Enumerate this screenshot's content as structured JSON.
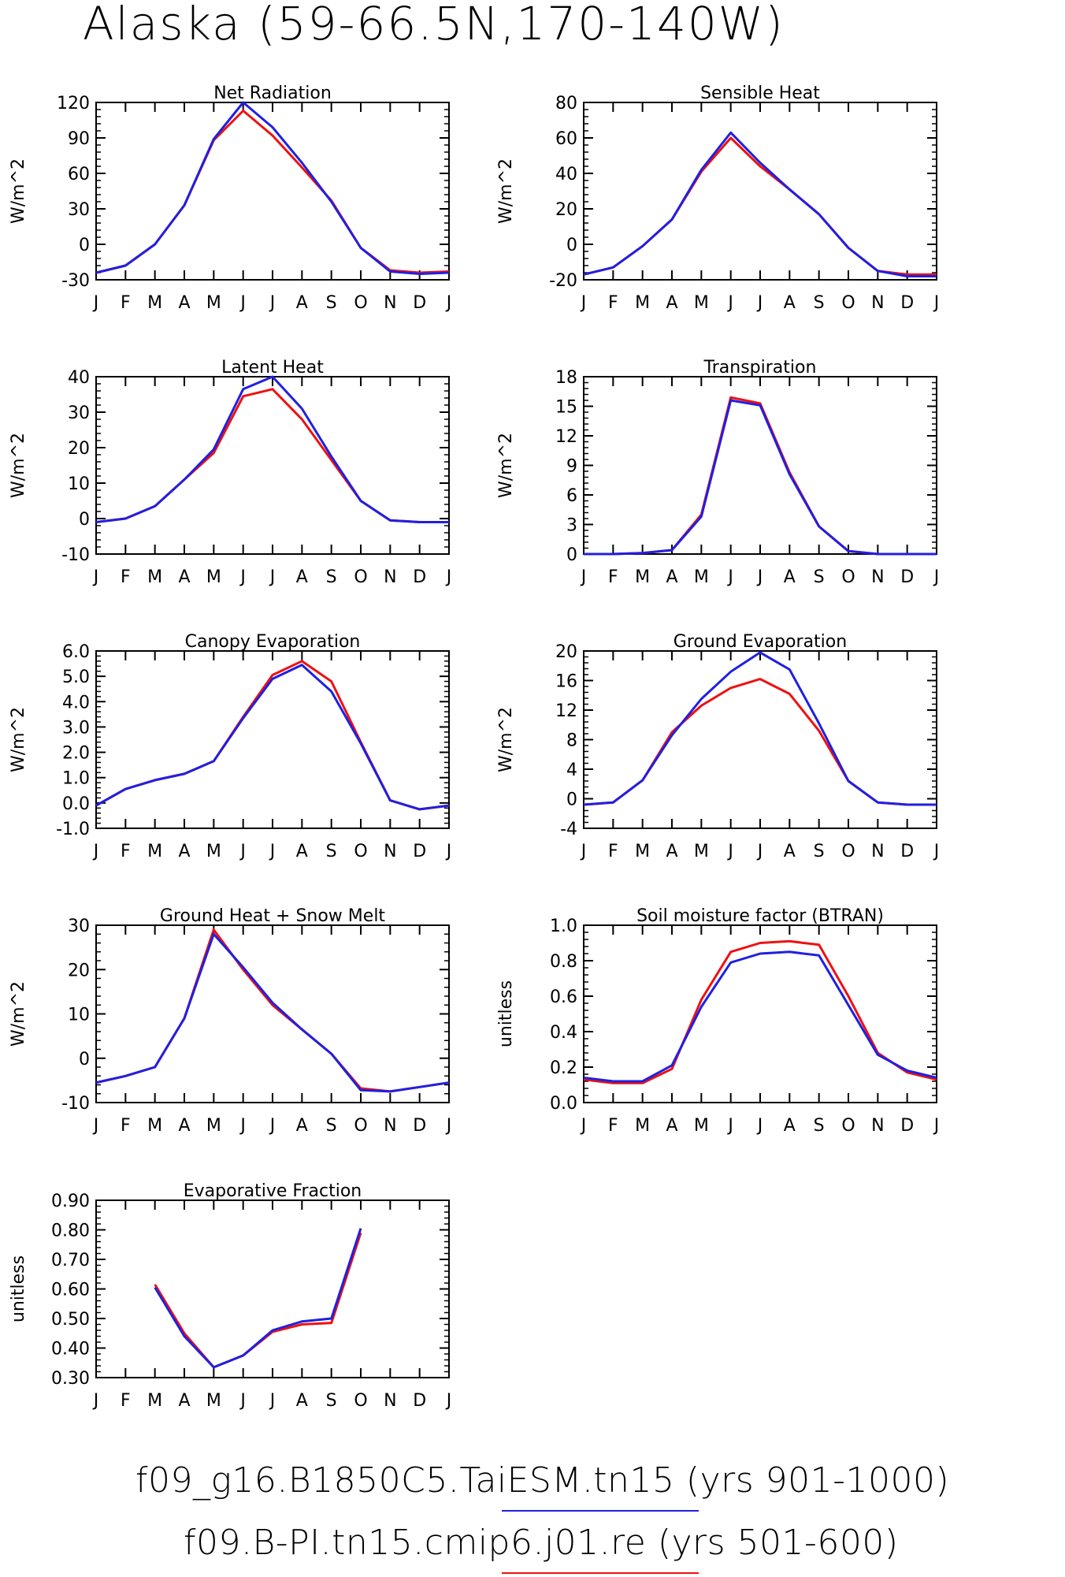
{
  "figure_title": "Alaska (59-66.5N,170-140W)",
  "legend": [
    {
      "label": "f09_g16.B1850C5.TaiESM.tn15 (yrs 901-1000)",
      "color": "#2020e0"
    },
    {
      "label": "f09.B-PI.tn15.cmip6.j01.re (yrs 501-600)",
      "color": "#ee1111"
    }
  ],
  "months": [
    "J",
    "F",
    "M",
    "A",
    "M",
    "J",
    "J",
    "A",
    "S",
    "O",
    "N",
    "D",
    "J"
  ],
  "chart_data": [
    {
      "type": "line",
      "title": "Net Radiation",
      "ylabel": "W/m^2",
      "ylim": [
        -30,
        120
      ],
      "yticks": [
        -30,
        0,
        30,
        60,
        90,
        120
      ],
      "ytick_labels": [
        "-30",
        "0",
        "30",
        "60",
        "90",
        "120"
      ],
      "series": [
        {
          "color": "#ee1111",
          "values": [
            -24,
            -18,
            0,
            33,
            88,
            113,
            92,
            65,
            37,
            -3,
            -22,
            -24,
            -23
          ]
        },
        {
          "color": "#2020e0",
          "values": [
            -24,
            -18,
            0,
            33,
            89,
            120,
            99,
            69,
            36,
            -3,
            -23,
            -25,
            -24
          ]
        }
      ]
    },
    {
      "type": "line",
      "title": "Sensible Heat",
      "ylabel": "W/m^2",
      "ylim": [
        -20,
        80
      ],
      "yticks": [
        -20,
        0,
        20,
        40,
        60,
        80
      ],
      "ytick_labels": [
        "-20",
        "0",
        "20",
        "40",
        "60",
        "80"
      ],
      "series": [
        {
          "color": "#ee1111",
          "values": [
            -17,
            -13,
            -1,
            14,
            41,
            60,
            44,
            31,
            17,
            -2,
            -15,
            -17,
            -17
          ]
        },
        {
          "color": "#2020e0",
          "values": [
            -17,
            -13,
            -1,
            14,
            42,
            63,
            46,
            31,
            17,
            -2,
            -15,
            -18,
            -18
          ]
        }
      ]
    },
    {
      "type": "line",
      "title": "Latent Heat",
      "ylabel": "W/m^2",
      "ylim": [
        -10,
        40
      ],
      "yticks": [
        -10,
        0,
        10,
        20,
        30,
        40
      ],
      "ytick_labels": [
        "-10",
        "0",
        "10",
        "20",
        "30",
        "40"
      ],
      "series": [
        {
          "color": "#ee1111",
          "values": [
            -1,
            0,
            3.5,
            11,
            18.5,
            34.5,
            36.5,
            28,
            16.5,
            5,
            -0.5,
            -1,
            -1
          ]
        },
        {
          "color": "#2020e0",
          "values": [
            -1,
            0,
            3.5,
            11,
            19.5,
            36.5,
            40,
            31,
            17.5,
            5,
            -0.5,
            -1,
            -1
          ]
        }
      ]
    },
    {
      "type": "line",
      "title": "Transpiration",
      "ylabel": "W/m^2",
      "ylim": [
        0,
        18
      ],
      "yticks": [
        0,
        3,
        6,
        9,
        12,
        15,
        18
      ],
      "ytick_labels": [
        "0",
        "3",
        "6",
        "9",
        "12",
        "15",
        "18"
      ],
      "series": [
        {
          "color": "#ee1111",
          "values": [
            0,
            0,
            0.1,
            0.4,
            4.0,
            15.9,
            15.3,
            8.3,
            2.8,
            0.3,
            0,
            0,
            0
          ]
        },
        {
          "color": "#2020e0",
          "values": [
            0,
            0,
            0.1,
            0.4,
            3.8,
            15.6,
            15.1,
            8.1,
            2.8,
            0.3,
            0,
            0,
            0
          ]
        }
      ]
    },
    {
      "type": "line",
      "title": "Canopy Evaporation",
      "ylabel": "W/m^2",
      "ylim": [
        -1,
        6
      ],
      "yticks": [
        -1,
        0,
        1,
        2,
        3,
        4,
        5,
        6
      ],
      "ytick_labels": [
        "-1.0",
        "0.0",
        "1.0",
        "2.0",
        "3.0",
        "4.0",
        "5.0",
        "6.0"
      ],
      "series": [
        {
          "color": "#ee1111",
          "values": [
            -0.1,
            0.55,
            0.9,
            1.15,
            1.65,
            3.4,
            5.05,
            5.6,
            4.8,
            2.4,
            0.1,
            -0.25,
            -0.1
          ]
        },
        {
          "color": "#2020e0",
          "values": [
            -0.1,
            0.55,
            0.9,
            1.15,
            1.65,
            3.35,
            4.9,
            5.45,
            4.4,
            2.35,
            0.1,
            -0.25,
            -0.1
          ]
        }
      ]
    },
    {
      "type": "line",
      "title": "Ground Evaporation",
      "ylabel": "W/m^2",
      "ylim": [
        -4,
        20
      ],
      "yticks": [
        -4,
        0,
        4,
        8,
        12,
        16,
        20
      ],
      "ytick_labels": [
        "-4",
        "0",
        "4",
        "8",
        "12",
        "16",
        "20"
      ],
      "series": [
        {
          "color": "#ee1111",
          "values": [
            -0.8,
            -0.5,
            2.5,
            9.0,
            12.6,
            15.0,
            16.2,
            14.2,
            9.2,
            2.4,
            -0.5,
            -0.8,
            -0.8
          ]
        },
        {
          "color": "#2020e0",
          "values": [
            -0.8,
            -0.5,
            2.5,
            8.6,
            13.5,
            17.2,
            19.8,
            17.5,
            10.2,
            2.4,
            -0.5,
            -0.8,
            -0.8
          ]
        }
      ]
    },
    {
      "type": "line",
      "title": "Ground Heat + Snow Melt",
      "ylabel": "W/m^2",
      "ylim": [
        -10,
        30
      ],
      "yticks": [
        -10,
        0,
        10,
        20,
        30
      ],
      "ytick_labels": [
        "-10",
        "0",
        "10",
        "20",
        "30"
      ],
      "series": [
        {
          "color": "#ee1111",
          "values": [
            -5.5,
            -4,
            -2,
            9,
            29,
            20,
            12,
            6.5,
            1,
            -6.8,
            -7.5,
            -6.5,
            -5.5
          ]
        },
        {
          "color": "#2020e0",
          "values": [
            -5.5,
            -4,
            -2,
            9,
            28,
            20.5,
            12.5,
            6.5,
            1,
            -7.2,
            -7.5,
            -6.5,
            -5.5
          ]
        }
      ]
    },
    {
      "type": "line",
      "title": "Soil moisture factor (BTRAN)",
      "ylabel": "unitless",
      "ylim": [
        0,
        1
      ],
      "yticks": [
        0,
        0.2,
        0.4,
        0.6,
        0.8,
        1.0
      ],
      "ytick_labels": [
        "0.0",
        "0.2",
        "0.4",
        "0.6",
        "0.8",
        "1.0"
      ],
      "series": [
        {
          "color": "#ee1111",
          "values": [
            0.13,
            0.11,
            0.11,
            0.19,
            0.58,
            0.85,
            0.9,
            0.91,
            0.89,
            0.6,
            0.28,
            0.17,
            0.13
          ]
        },
        {
          "color": "#2020e0",
          "values": [
            0.14,
            0.12,
            0.12,
            0.21,
            0.54,
            0.79,
            0.84,
            0.85,
            0.83,
            0.55,
            0.27,
            0.18,
            0.14
          ]
        }
      ]
    },
    {
      "type": "line",
      "title": "Evaporative Fraction",
      "ylabel": "unitless",
      "ylim": [
        0.3,
        0.9
      ],
      "yticks": [
        0.3,
        0.4,
        0.5,
        0.6,
        0.7,
        0.8,
        0.9
      ],
      "ytick_labels": [
        "0.30",
        "0.40",
        "0.50",
        "0.60",
        "0.70",
        "0.80",
        "0.90"
      ],
      "series": [
        {
          "color": "#ee1111",
          "values": [
            null,
            null,
            0.615,
            0.45,
            0.335,
            0.375,
            0.455,
            0.48,
            0.485,
            0.79,
            null,
            null,
            null
          ]
        },
        {
          "color": "#2020e0",
          "values": [
            null,
            null,
            0.605,
            0.44,
            0.335,
            0.375,
            0.46,
            0.49,
            0.5,
            0.805,
            null,
            null,
            null
          ]
        }
      ]
    }
  ]
}
